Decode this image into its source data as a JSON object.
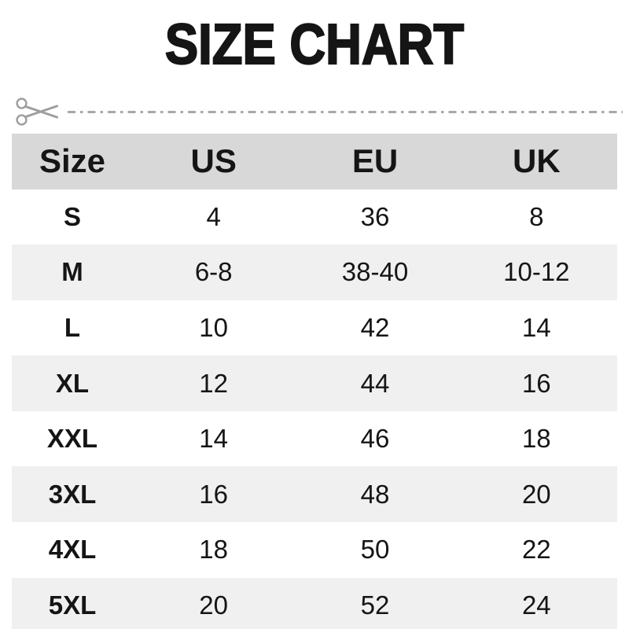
{
  "title": "SIZE CHART",
  "cut_line": {
    "icon": "scissors-icon",
    "style": "dash-dot"
  },
  "colors": {
    "header_bg": "#d8d8d8",
    "alt_row_bg": "#f0f0f0",
    "text": "#151515",
    "cut_line": "#a8a8a8"
  },
  "chart_data": {
    "type": "table",
    "title": "SIZE CHART",
    "columns": [
      "Size",
      "US",
      "EU",
      "UK"
    ],
    "rows": [
      [
        "S",
        "4",
        "36",
        "8"
      ],
      [
        "M",
        "6-8",
        "38-40",
        "10-12"
      ],
      [
        "L",
        "10",
        "42",
        "14"
      ],
      [
        "XL",
        "12",
        "44",
        "16"
      ],
      [
        "XXL",
        "14",
        "46",
        "18"
      ],
      [
        "3XL",
        "16",
        "48",
        "20"
      ],
      [
        "4XL",
        "18",
        "50",
        "22"
      ],
      [
        "5XL",
        "20",
        "52",
        "24"
      ]
    ],
    "layout_hints": {
      "header_band": "gray",
      "zebra_striping": "white / light-gray alternating starting white",
      "alignment": "all cells centered"
    }
  }
}
